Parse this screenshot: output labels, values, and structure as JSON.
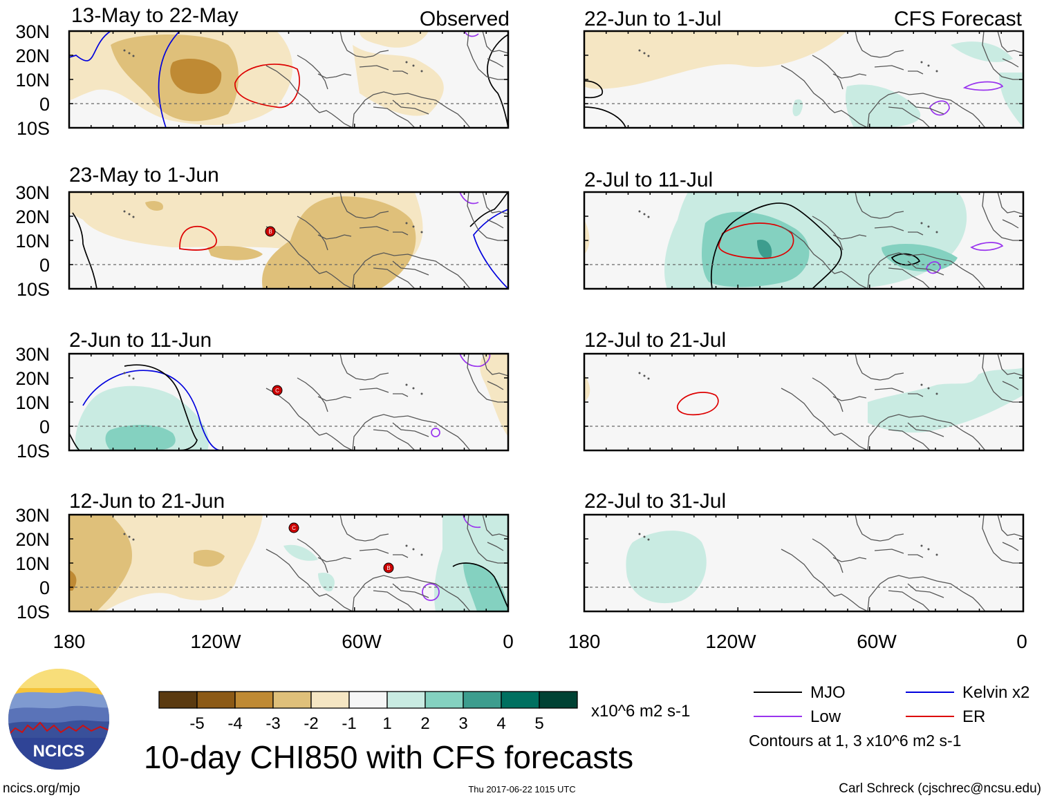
{
  "figure": {
    "main_title": "10-day CHI850 with CFS forecasts",
    "observed_label": "Observed",
    "forecast_label": "CFS Forecast",
    "lat_labels": [
      "30N",
      "20N",
      "10N",
      "0",
      "10S"
    ],
    "lon_labels": [
      "180",
      "120W",
      "60W",
      "0"
    ],
    "colorbar": {
      "unit_label": "x10^6 m2 s-1",
      "tick_labels": [
        "-5",
        "-4",
        "-3",
        "-2",
        "-1",
        "1",
        "2",
        "3",
        "4",
        "5"
      ],
      "colors": [
        "#5a3a10",
        "#8c5a16",
        "#bf8a34",
        "#dfc07a",
        "#f5e6c3",
        "#f6f6f6",
        "#c9ebe2",
        "#84d1c0",
        "#3d9d8e",
        "#007060",
        "#004234"
      ]
    },
    "legend": {
      "items": [
        {
          "label": "MJO",
          "color": "#000000"
        },
        {
          "label": "Kelvin x2",
          "color": "#0000dd"
        },
        {
          "label": "Low",
          "color": "#9933ee"
        },
        {
          "label": "ER",
          "color": "#dd0000"
        }
      ],
      "note": "Contours at 1, 3 x10^6 m2 s-1"
    },
    "footer": {
      "left": "ncics.org/mjo",
      "center": "Thu 2017-06-22 1015 UTC",
      "right": "Carl Schreck (cjschrec@ncsu.edu)"
    },
    "logo_text": "NCICS"
  },
  "panels": [
    {
      "period": "13-May to 22-May",
      "type": "observed"
    },
    {
      "period": "23-May to 1-Jun",
      "type": "observed"
    },
    {
      "period": "2-Jun to 11-Jun",
      "type": "observed"
    },
    {
      "period": "12-Jun to 21-Jun",
      "type": "observed"
    },
    {
      "period": "22-Jun to 1-Jul",
      "type": "forecast"
    },
    {
      "period": "2-Jul to 11-Jul",
      "type": "forecast"
    },
    {
      "period": "12-Jul to 21-Jul",
      "type": "forecast"
    },
    {
      "period": "22-Jul to 31-Jul",
      "type": "forecast"
    }
  ],
  "storm_markers": [
    "B",
    "C",
    "C",
    "B"
  ]
}
